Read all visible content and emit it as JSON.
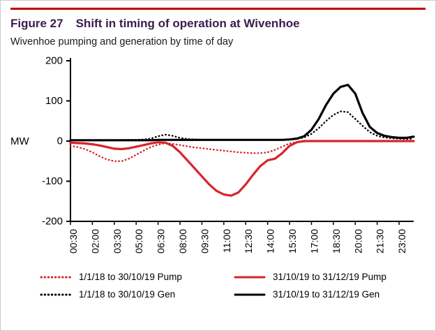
{
  "figure": {
    "label": "Figure 27",
    "title": "Shift in timing of operation at Wivenhoe",
    "subtitle": "Wivenhoe pumping and generation by time of day"
  },
  "colors": {
    "top_rule": "#c00000",
    "title_purple": "#3b1c4e",
    "series_red": "#d8232a",
    "series_black": "#000000",
    "axis_black": "#000000"
  },
  "chart_data": {
    "type": "line",
    "title": "Figure 27 Shift in timing of operation at Wivenhoe",
    "subtitle": "Wivenhoe pumping and generation by time of day",
    "xlabel": "",
    "ylabel": "MW",
    "ylim": [
      -200,
      200
    ],
    "yticks": [
      200,
      100,
      0,
      -100,
      -200
    ],
    "grid": false,
    "legend_position": "bottom",
    "x_tick_every": 3,
    "x_tick_labels": [
      "00:30",
      "02:00",
      "03:30",
      "05:00",
      "06:30",
      "08:00",
      "09:30",
      "11:00",
      "12:30",
      "14:00",
      "15:30",
      "17:00",
      "18:30",
      "20:00",
      "21:30",
      "23:00"
    ],
    "x": [
      "00:30",
      "01:00",
      "01:30",
      "02:00",
      "02:30",
      "03:00",
      "03:30",
      "04:00",
      "04:30",
      "05:00",
      "05:30",
      "06:00",
      "06:30",
      "07:00",
      "07:30",
      "08:00",
      "08:30",
      "09:00",
      "09:30",
      "10:00",
      "10:30",
      "11:00",
      "11:30",
      "12:00",
      "12:30",
      "13:00",
      "13:30",
      "14:00",
      "14:30",
      "15:00",
      "15:30",
      "16:00",
      "16:30",
      "17:00",
      "17:30",
      "18:00",
      "18:30",
      "19:00",
      "19:30",
      "20:00",
      "20:30",
      "21:00",
      "21:30",
      "22:00",
      "22:30",
      "23:00",
      "23:30",
      "24:00"
    ],
    "series": [
      {
        "name": "1/1/18 to 30/10/19 Pump",
        "color": "#d8232a",
        "dash": "dotted",
        "values": [
          -12,
          -15,
          -20,
          -28,
          -38,
          -46,
          -50,
          -50,
          -44,
          -34,
          -24,
          -15,
          -9,
          -5,
          -7,
          -10,
          -13,
          -16,
          -18,
          -20,
          -22,
          -24,
          -26,
          -28,
          -29,
          -30,
          -30,
          -28,
          -22,
          -14,
          -6,
          -2,
          -1,
          0,
          0,
          0,
          0,
          0,
          0,
          0,
          0,
          0,
          0,
          0,
          0,
          0,
          0,
          0
        ]
      },
      {
        "name": "31/10/19 to 31/12/19 Pump",
        "color": "#d8232a",
        "dash": "solid",
        "values": [
          -4,
          -5,
          -6,
          -8,
          -11,
          -15,
          -19,
          -20,
          -18,
          -14,
          -10,
          -6,
          -3,
          -4,
          -12,
          -28,
          -48,
          -68,
          -88,
          -108,
          -124,
          -133,
          -136,
          -128,
          -108,
          -84,
          -62,
          -48,
          -44,
          -30,
          -12,
          -3,
          0,
          0,
          0,
          0,
          0,
          0,
          0,
          0,
          0,
          0,
          0,
          0,
          0,
          0,
          0,
          0
        ]
      },
      {
        "name": "1/1/18 to 30/10/19 Gen",
        "color": "#000000",
        "dash": "dotted",
        "values": [
          2,
          2,
          2,
          2,
          2,
          2,
          2,
          3,
          3,
          3,
          4,
          6,
          12,
          16,
          13,
          8,
          5,
          4,
          3,
          3,
          3,
          3,
          3,
          3,
          3,
          3,
          3,
          3,
          3,
          3,
          3,
          5,
          9,
          18,
          32,
          50,
          65,
          74,
          72,
          55,
          38,
          22,
          13,
          9,
          7,
          6,
          5,
          6
        ]
      },
      {
        "name": "31/10/19 to 31/12/19 Gen",
        "color": "#000000",
        "dash": "solid",
        "values": [
          2,
          2,
          2,
          2,
          2,
          2,
          2,
          2,
          2,
          2,
          2,
          2,
          3,
          3,
          3,
          3,
          3,
          3,
          3,
          3,
          3,
          3,
          3,
          3,
          3,
          3,
          3,
          3,
          3,
          3,
          4,
          6,
          12,
          28,
          55,
          90,
          118,
          135,
          140,
          118,
          70,
          35,
          20,
          13,
          10,
          8,
          8,
          11
        ]
      }
    ]
  }
}
